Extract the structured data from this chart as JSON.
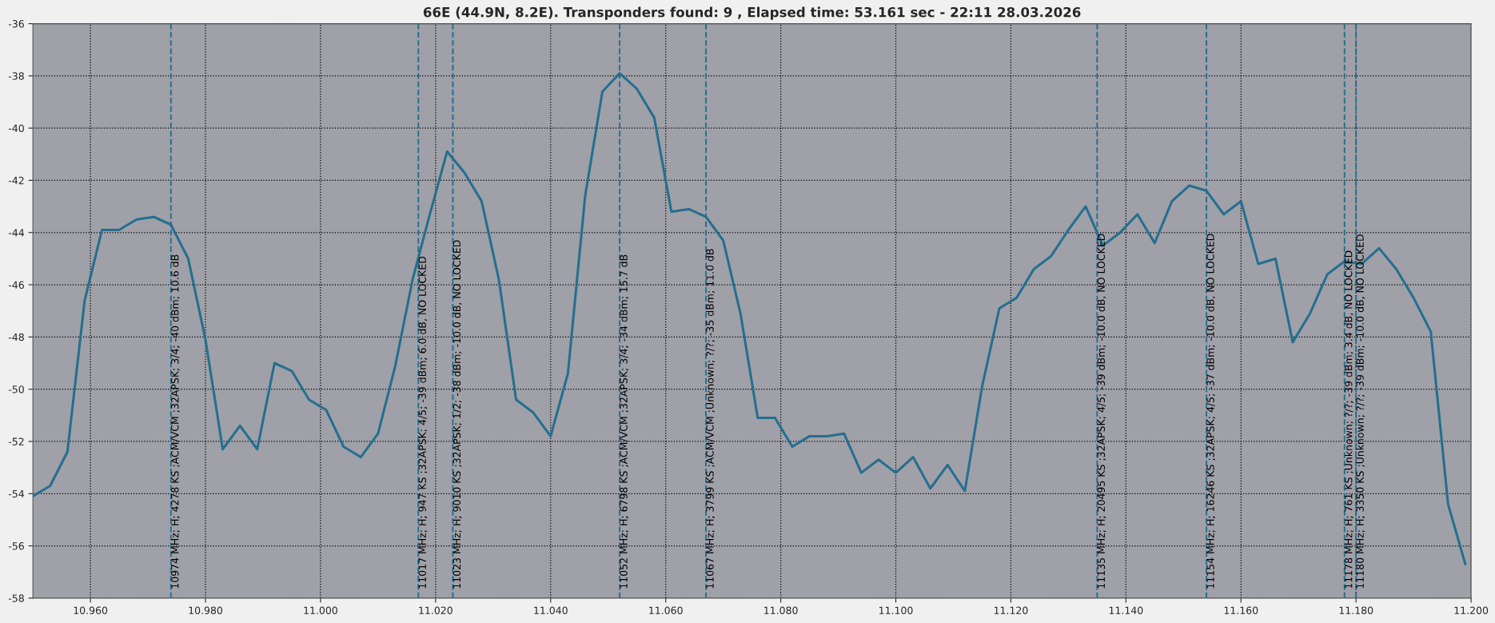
{
  "chart_data": {
    "type": "line",
    "title": "66E (44.9N, 8.2E). Transponders found: 9 , Elapsed time: 53.161 sec - 22:11 28.03.2026",
    "x": [
      10.95,
      10.953,
      10.956,
      10.959,
      10.962,
      10.965,
      10.968,
      10.971,
      10.974,
      10.977,
      10.98,
      10.983,
      10.986,
      10.989,
      10.992,
      10.995,
      10.998,
      11.001,
      11.004,
      11.007,
      11.01,
      11.013,
      11.016,
      11.019,
      11.022,
      11.025,
      11.028,
      11.031,
      11.034,
      11.037,
      11.04,
      11.043,
      11.046,
      11.049,
      11.052,
      11.055,
      11.058,
      11.061,
      11.064,
      11.067,
      11.07,
      11.073,
      11.076,
      11.079,
      11.082,
      11.085,
      11.088,
      11.091,
      11.094,
      11.097,
      11.1,
      11.103,
      11.106,
      11.109,
      11.112,
      11.115,
      11.118,
      11.121,
      11.124,
      11.127,
      11.13,
      11.133,
      11.136,
      11.139,
      11.142,
      11.145,
      11.148,
      11.151,
      11.154,
      11.157,
      11.16,
      11.163,
      11.166,
      11.169,
      11.172,
      11.175,
      11.178,
      11.181,
      11.184,
      11.187,
      11.19,
      11.193,
      11.196,
      11.199
    ],
    "series": [
      {
        "color": "#256f8f",
        "values": [
          -54.1,
          -53.7,
          -52.4,
          -46.6,
          -43.9,
          -43.9,
          -43.5,
          -43.4,
          -43.7,
          -45.0,
          -48.1,
          -52.3,
          -51.4,
          -52.3,
          -49.0,
          -49.3,
          -50.4,
          -50.8,
          -52.2,
          -52.6,
          -51.7,
          -49.1,
          -45.8,
          -43.3,
          -40.9,
          -41.7,
          -42.8,
          -45.8,
          -50.4,
          -50.9,
          -51.8,
          -49.4,
          -42.6,
          -38.6,
          -37.9,
          -38.5,
          -39.6,
          -43.2,
          -43.1,
          -43.4,
          -44.3,
          -47.1,
          -51.1,
          -51.1,
          -52.2,
          -51.8,
          -51.8,
          -51.7,
          -53.2,
          -52.7,
          -53.2,
          -52.6,
          -53.8,
          -52.9,
          -53.9,
          -49.9,
          -46.9,
          -46.5,
          -45.4,
          -44.9,
          -43.9,
          -43.0,
          -44.5,
          -44.0,
          -43.3,
          -44.4,
          -42.8,
          -42.2,
          -42.4,
          -43.3,
          -42.8,
          -45.2,
          -45.0,
          -48.2,
          -47.1,
          -45.6,
          -45.1,
          -45.2,
          -44.6,
          -45.4,
          -46.5,
          -47.8,
          -54.4,
          -56.7
        ]
      }
    ],
    "xlim": [
      10.95,
      11.2
    ],
    "ylim": [
      -58,
      -36
    ],
    "xticks": [
      {
        "value": 10.96,
        "label": "10.960"
      },
      {
        "value": 10.98,
        "label": "10.980"
      },
      {
        "value": 11.0,
        "label": "11.000"
      },
      {
        "value": 11.02,
        "label": "11.020"
      },
      {
        "value": 11.04,
        "label": "11.040"
      },
      {
        "value": 11.06,
        "label": "11.060"
      },
      {
        "value": 11.08,
        "label": "11.080"
      },
      {
        "value": 11.1,
        "label": "11.100"
      },
      {
        "value": 11.12,
        "label": "11.120"
      },
      {
        "value": 11.14,
        "label": "11.140"
      },
      {
        "value": 11.16,
        "label": "11.160"
      },
      {
        "value": 11.18,
        "label": "11.180"
      },
      {
        "value": 11.2,
        "label": "11.200"
      }
    ],
    "yticks": [
      -58,
      -56,
      -54,
      -52,
      -50,
      -48,
      -46,
      -44,
      -42,
      -40,
      -38,
      -36
    ],
    "grid": true,
    "marker": "none",
    "line_style": "solid",
    "ref_lines": [
      {
        "axis": "x",
        "value": 10.974,
        "label": "10974 MHz; H; 4278 KS ;ACM/VCM ;32APSK; 3/4; -40 dBm; 10.6 dB",
        "color": "#256f8f",
        "line_style": "dashed"
      },
      {
        "axis": "x",
        "value": 11.017,
        "label": "11017 MHz; H; 947 KS ;32APSK; 4/5; -39 dBm; 6.0 dB, NO LOCKED",
        "color": "#256f8f",
        "line_style": "dashed"
      },
      {
        "axis": "x",
        "value": 11.023,
        "label": "11023 MHz; H; 9010 KS ;32APSK; 1/2; -38 dBm; -10.0 dB, NO LOCKED",
        "color": "#256f8f",
        "line_style": "dashed"
      },
      {
        "axis": "x",
        "value": 11.052,
        "label": "11052 MHz; H; 6798 KS ;ACM/VCM ;32APSK; 3/4; -34 dBm; 15.7 dB",
        "color": "#256f8f",
        "line_style": "dashed"
      },
      {
        "axis": "x",
        "value": 11.067,
        "label": "11067 MHz; H; 3799 KS ;ACM/VCM ;Unknown; ?/?; -35 dBm; 11.0 dB",
        "color": "#256f8f",
        "line_style": "dashed"
      },
      {
        "axis": "x",
        "value": 11.135,
        "label": "11135 MHz; H; 20495 KS ;32APSK; 4/5; -39 dBm; -10.0 dB, NO LOCKED",
        "color": "#256f8f",
        "line_style": "dashed"
      },
      {
        "axis": "x",
        "value": 11.154,
        "label": "11154 MHz; H; 16246 KS ;32APSK; 4/5; -37 dBm; -10.0 dB, NO LOCKED",
        "color": "#256f8f",
        "line_style": "dashed"
      },
      {
        "axis": "x",
        "value": 11.178,
        "label": "11178 MHz; H; 761 KS ;Unknown; ?/?; -39 dBm; 3.4 dB, NO LOCKED",
        "color": "#256f8f",
        "line_style": "dashed"
      },
      {
        "axis": "x",
        "value": 11.18,
        "label": "11180 MHz; H; 3350 KS ;Unknown; ?/?; -39 dBm; -10.0 dB, NO LOCKED",
        "color": "#256f8f",
        "line_style": "dashed"
      }
    ]
  }
}
